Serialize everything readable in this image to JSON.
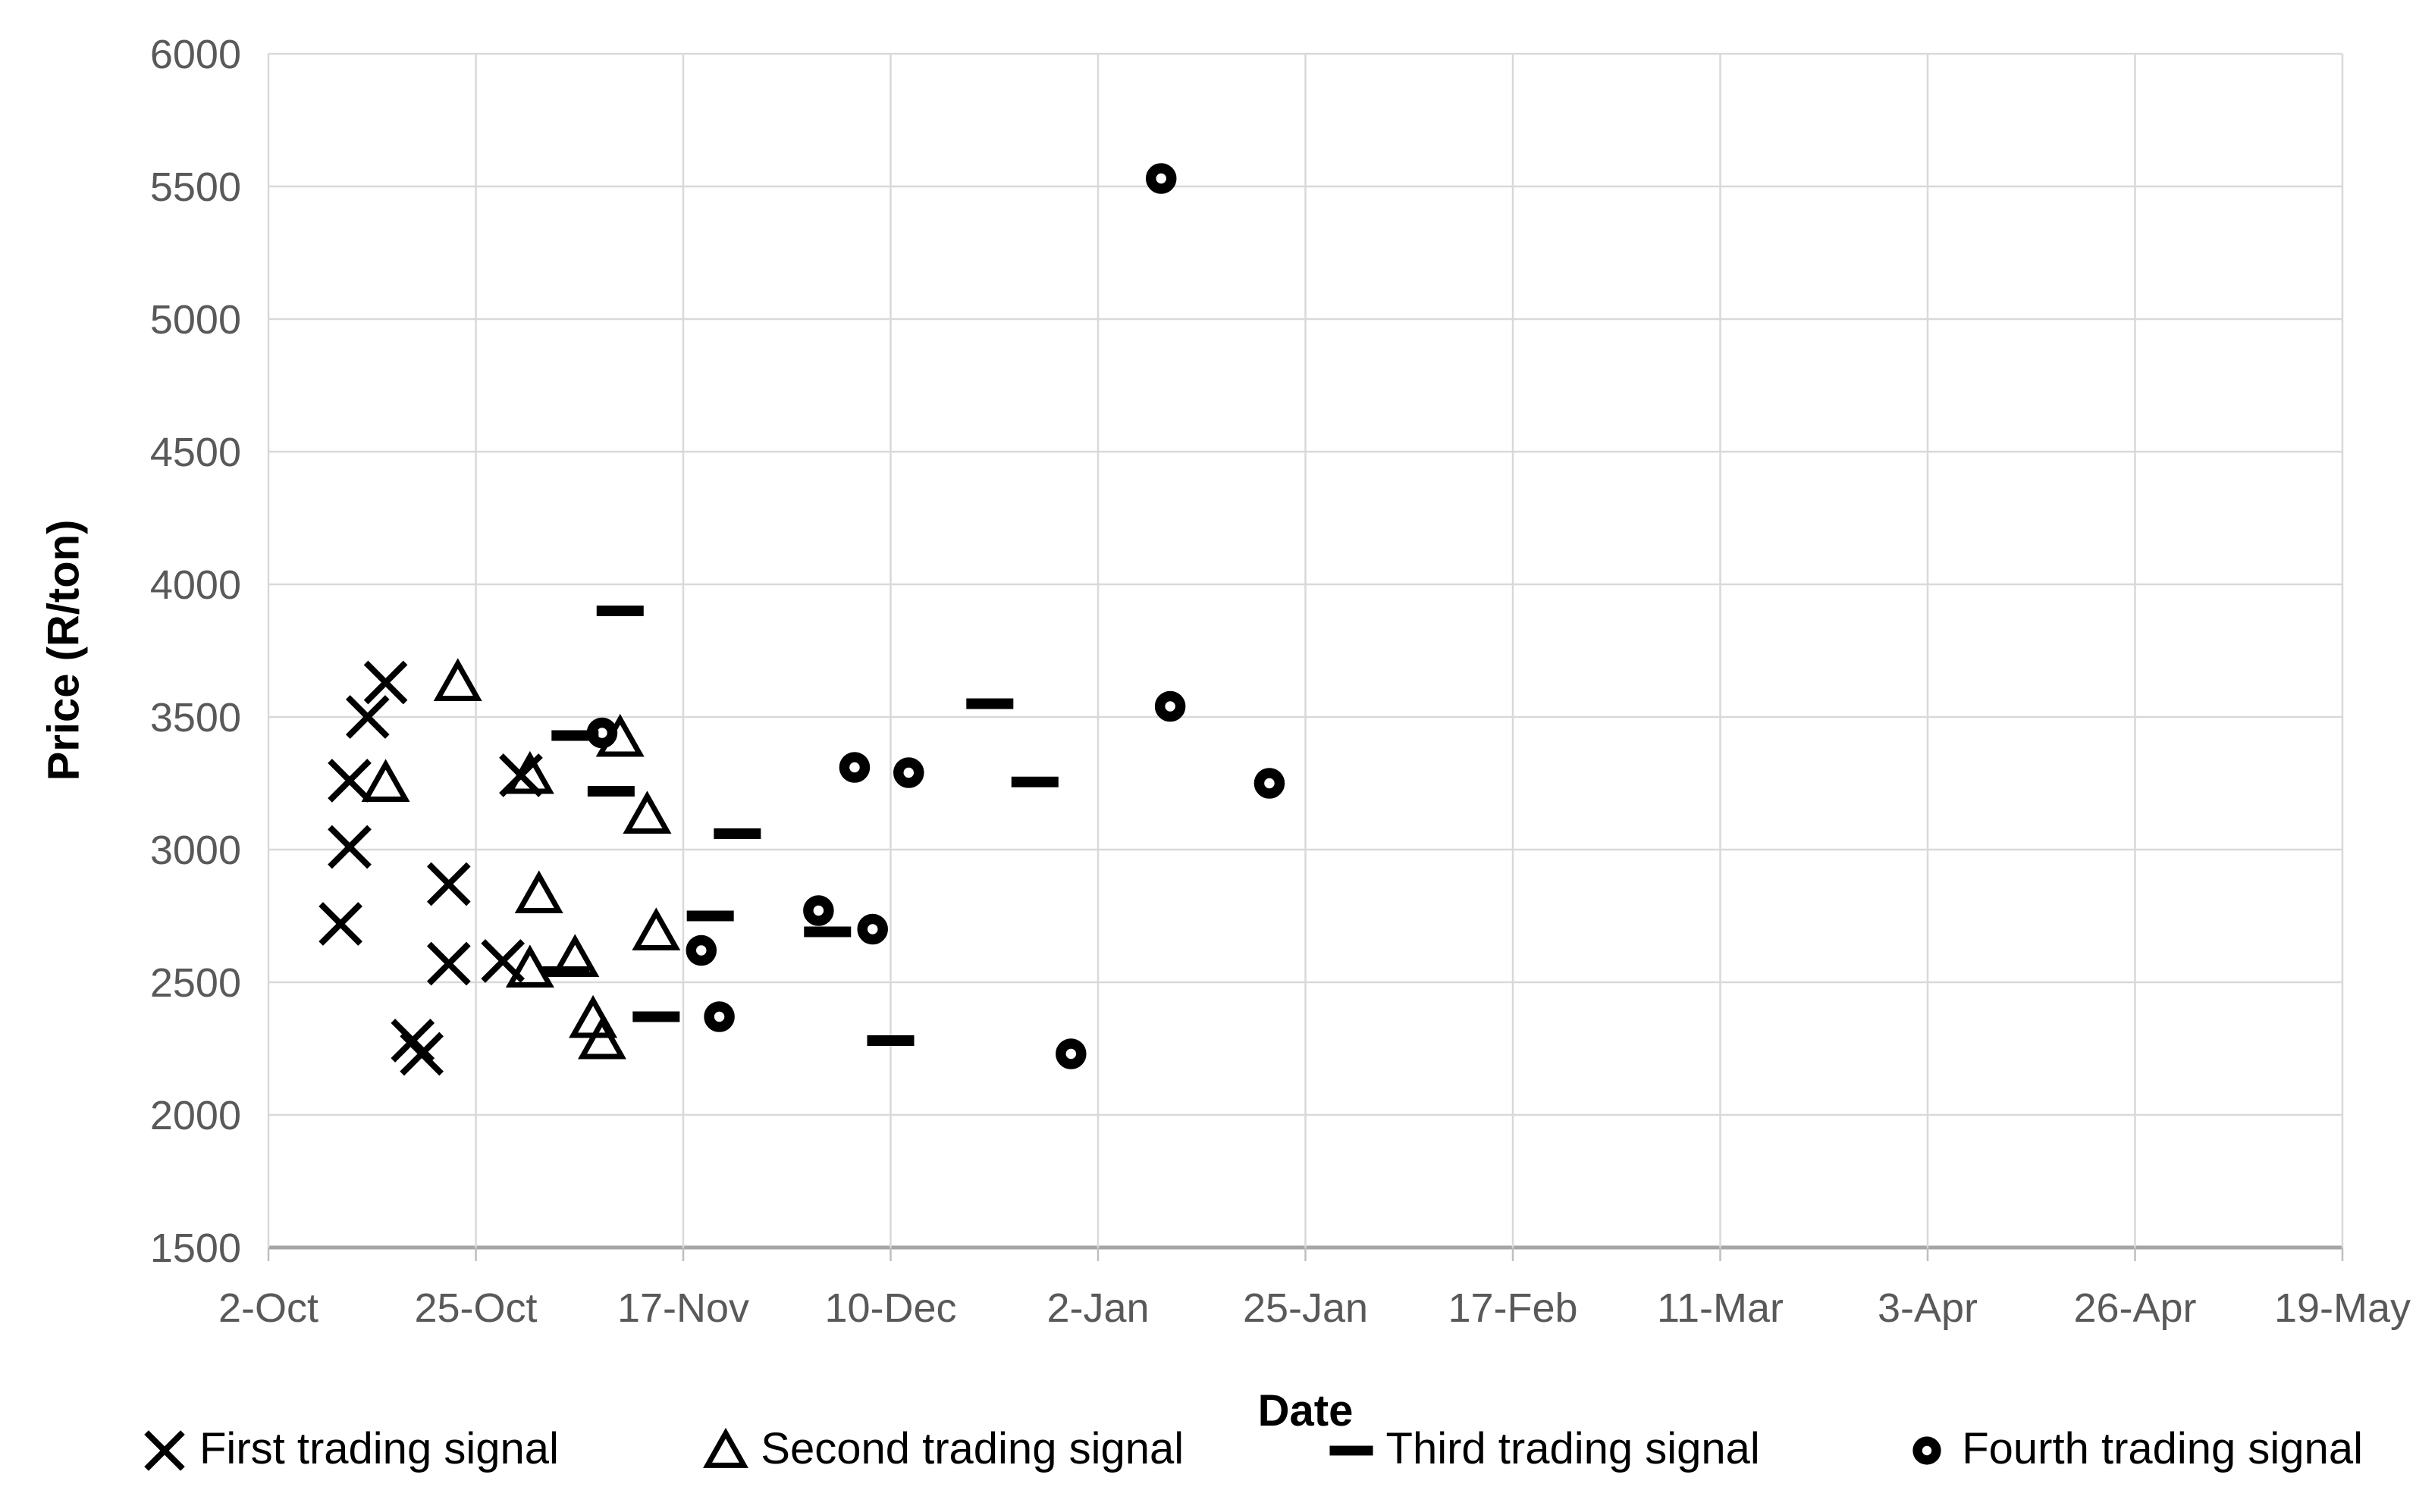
{
  "chart_data": {
    "type": "scatter",
    "title": "",
    "xlabel": "Date",
    "ylabel": "Price (R/ton)",
    "grid": true,
    "legend_position": "bottom",
    "x_axis": {
      "tick_labels": [
        "2-Oct",
        "25-Oct",
        "17-Nov",
        "10-Dec",
        "2-Jan",
        "25-Jan",
        "17-Feb",
        "11-Mar",
        "3-Apr",
        "26-Apr",
        "19-May"
      ],
      "tick_interval_days": 23,
      "start_day_offset": 0,
      "end_day_offset": 230
    },
    "y_axis": {
      "min": 1500,
      "max": 6000,
      "step": 500,
      "tick_labels": [
        "1500",
        "2000",
        "2500",
        "3000",
        "3500",
        "4000",
        "4500",
        "5000",
        "5500",
        "6000"
      ]
    },
    "series": [
      {
        "name": "First trading signal",
        "marker": "x",
        "points": [
          {
            "date": "10-Oct",
            "day": 8,
            "price": 2720
          },
          {
            "date": "11-Oct",
            "day": 9,
            "price": 3010
          },
          {
            "date": "11-Oct",
            "day": 9,
            "price": 3260
          },
          {
            "date": "13-Oct",
            "day": 11,
            "price": 3500
          },
          {
            "date": "15-Oct",
            "day": 13,
            "price": 3630
          },
          {
            "date": "18-Oct",
            "day": 16,
            "price": 2280
          },
          {
            "date": "19-Oct",
            "day": 17,
            "price": 2230
          },
          {
            "date": "22-Oct",
            "day": 20,
            "price": 2870
          },
          {
            "date": "22-Oct",
            "day": 20,
            "price": 2570
          },
          {
            "date": "28-Oct",
            "day": 26,
            "price": 2580
          },
          {
            "date": "30-Oct",
            "day": 28,
            "price": 3280
          }
        ]
      },
      {
        "name": "Second trading signal",
        "marker": "triangle",
        "points": [
          {
            "date": "15-Oct",
            "day": 13,
            "price": 3250
          },
          {
            "date": "23-Oct",
            "day": 21,
            "price": 3630
          },
          {
            "date": "31-Oct",
            "day": 29,
            "price": 3280
          },
          {
            "date": "31-Oct",
            "day": 29,
            "price": 2550
          },
          {
            "date": "1-Nov",
            "day": 30,
            "price": 2830
          },
          {
            "date": "5-Nov",
            "day": 34,
            "price": 2590
          },
          {
            "date": "7-Nov",
            "day": 36,
            "price": 2360
          },
          {
            "date": "8-Nov",
            "day": 37,
            "price": 2280
          },
          {
            "date": "10-Nov",
            "day": 39,
            "price": 3420
          },
          {
            "date": "13-Nov",
            "day": 42,
            "price": 3130
          },
          {
            "date": "14-Nov",
            "day": 43,
            "price": 2690
          }
        ]
      },
      {
        "name": "Third trading signal",
        "marker": "dash",
        "points": [
          {
            "date": "4-Nov",
            "day": 33,
            "price": 2540
          },
          {
            "date": "5-Nov",
            "day": 34,
            "price": 3430
          },
          {
            "date": "9-Nov",
            "day": 38,
            "price": 3220
          },
          {
            "date": "10-Nov",
            "day": 39,
            "price": 3900
          },
          {
            "date": "14-Nov",
            "day": 43,
            "price": 2370
          },
          {
            "date": "20-Nov",
            "day": 49,
            "price": 2750
          },
          {
            "date": "23-Nov",
            "day": 52,
            "price": 3060
          },
          {
            "date": "3-Dec",
            "day": 62,
            "price": 2690
          },
          {
            "date": "10-Dec",
            "day": 69,
            "price": 2280
          },
          {
            "date": "21-Dec",
            "day": 80,
            "price": 3550
          },
          {
            "date": "26-Dec",
            "day": 85,
            "price": 3255
          }
        ]
      },
      {
        "name": "Fourth trading signal",
        "marker": "circle",
        "points": [
          {
            "date": "8-Nov",
            "day": 37,
            "price": 3440
          },
          {
            "date": "19-Nov",
            "day": 48,
            "price": 2620
          },
          {
            "date": "21-Nov",
            "day": 50,
            "price": 2370
          },
          {
            "date": "2-Dec",
            "day": 61,
            "price": 2770
          },
          {
            "date": "6-Dec",
            "day": 65,
            "price": 3310
          },
          {
            "date": "8-Dec",
            "day": 67,
            "price": 2700
          },
          {
            "date": "12-Dec",
            "day": 71,
            "price": 3290
          },
          {
            "date": "30-Dec",
            "day": 89,
            "price": 2230
          },
          {
            "date": "9-Jan",
            "day": 99,
            "price": 5530
          },
          {
            "date": "10-Jan",
            "day": 100,
            "price": 3540
          },
          {
            "date": "21-Jan",
            "day": 111,
            "price": 3250
          }
        ]
      }
    ]
  },
  "colors": {
    "marker": "#000000",
    "gridline": "#d9d9d9",
    "axis_line": "#a6a6a6",
    "tick_text": "#595959",
    "legend_text": "#000000"
  }
}
